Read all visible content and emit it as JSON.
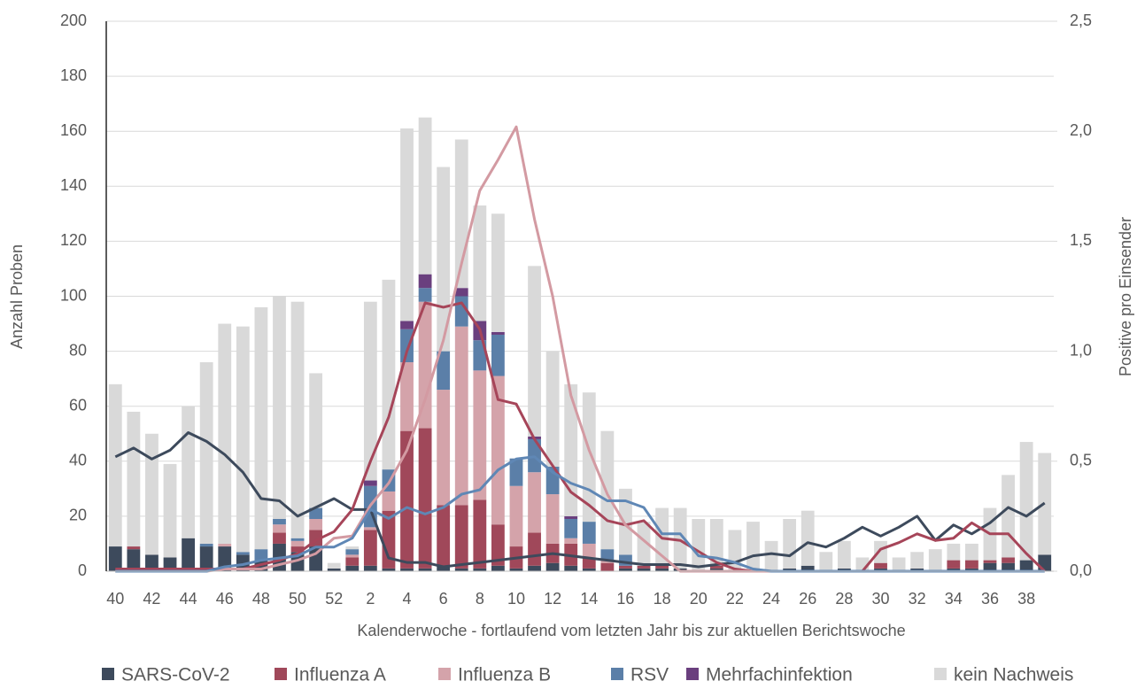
{
  "chart_data": {
    "type": "bar",
    "stacked": true,
    "x_label": "Kalenderwoche - fortlaufend vom letzten Jahr bis zur aktuellen Berichtswoche",
    "y_label": "Anzahl Proben",
    "y2_label": "Positive pro Einsender",
    "categories": [
      "40",
      null,
      "42",
      null,
      "44",
      null,
      "46",
      null,
      "48",
      null,
      "50",
      null,
      "52",
      null,
      "2",
      null,
      "4",
      null,
      "6",
      null,
      "8",
      null,
      "10",
      null,
      "12",
      null,
      "14",
      null,
      "16",
      null,
      "18",
      null,
      "20",
      null,
      "22",
      null,
      "24",
      null,
      "26",
      null,
      "28",
      null,
      "30",
      null,
      "32",
      null,
      "34",
      null,
      "36",
      null,
      "38",
      null
    ],
    "ylim": [
      0,
      200
    ],
    "yticks": [
      0,
      20,
      40,
      60,
      80,
      100,
      120,
      140,
      160,
      180,
      200
    ],
    "y2lim": [
      0,
      2.5
    ],
    "y2ticks": [
      {
        "value": 0,
        "label": "0,0"
      },
      {
        "value": 0.5,
        "label": "0,5"
      },
      {
        "value": 1,
        "label": "1,0"
      },
      {
        "value": 1.5,
        "label": "1,5"
      },
      {
        "value": 2,
        "label": "2,0"
      },
      {
        "value": 2.5,
        "label": "2,5"
      }
    ],
    "grid": true,
    "legend": "bottom",
    "series": [
      {
        "name": "SARS-CoV-2",
        "color": "#3d4a5c",
        "line_color": "#3d4a5c",
        "values": [
          9,
          8,
          6,
          5,
          12,
          9,
          9,
          6,
          4,
          10,
          7,
          9,
          1,
          2,
          2,
          1,
          1,
          1,
          2,
          1,
          1,
          2,
          1,
          2,
          3,
          2,
          1,
          0,
          1,
          1,
          1,
          1,
          0,
          1,
          0,
          0,
          0,
          1,
          2,
          0,
          1,
          0,
          1,
          0,
          1,
          0,
          1,
          1,
          3,
          3,
          4,
          6
        ],
        "rates": [
          0.52,
          0.56,
          0.51,
          0.55,
          0.63,
          0.59,
          0.53,
          0.45,
          0.33,
          0.32,
          0.25,
          0.29,
          0.33,
          0.28,
          0.28,
          0.06,
          0.04,
          0.04,
          0.02,
          0.03,
          0.04,
          0.05,
          0.06,
          0.07,
          0.08,
          0.07,
          0.06,
          0.05,
          0.04,
          0.03,
          0.03,
          0.03,
          0.02,
          0.03,
          0.04,
          0.07,
          0.08,
          0.07,
          0.13,
          0.11,
          0.15,
          0.2,
          0.16,
          0.2,
          0.25,
          0.14,
          0.21,
          0.17,
          0.22,
          0.29,
          0.25,
          0.31
        ]
      },
      {
        "name": "Influenza A",
        "color": "#a0485a",
        "line_color": "#a64559",
        "values": [
          0,
          1,
          0,
          0,
          0,
          0,
          0,
          0,
          0,
          4,
          2,
          6,
          0,
          3,
          13,
          21,
          50,
          51,
          22,
          23,
          25,
          15,
          8,
          12,
          7,
          8,
          4,
          3,
          1,
          1,
          1,
          0,
          0,
          1,
          0,
          0,
          0,
          0,
          0,
          0,
          0,
          0,
          2,
          0,
          0,
          0,
          3,
          3,
          1,
          2,
          0,
          0
        ],
        "rates": [
          0.01,
          0.01,
          0.01,
          0.01,
          0.01,
          0.01,
          0.01,
          0.01,
          0.03,
          0.05,
          0.08,
          0.14,
          0.18,
          0.28,
          0.5,
          0.7,
          1.0,
          1.22,
          1.2,
          1.22,
          1.1,
          0.78,
          0.76,
          0.6,
          0.48,
          0.36,
          0.3,
          0.23,
          0.21,
          0.23,
          0.15,
          0.14,
          0.09,
          0.04,
          0.01,
          0,
          0,
          0,
          0,
          0,
          0,
          0,
          0.1,
          0.13,
          0.17,
          0.14,
          0.15,
          0.22,
          0.17,
          0.17,
          0.08,
          0
        ]
      },
      {
        "name": "Influenza B",
        "color": "#d4a3aa",
        "line_color": "#d39aa2",
        "values": [
          0,
          0,
          0,
          0,
          0,
          0,
          1,
          0,
          0,
          3,
          2,
          4,
          0,
          1,
          1,
          7,
          25,
          46,
          42,
          65,
          47,
          54,
          22,
          22,
          18,
          2,
          5,
          1,
          0,
          0,
          0,
          0,
          0,
          0,
          0,
          0,
          0,
          0,
          0,
          0,
          0,
          0,
          0,
          0,
          0,
          0,
          0,
          0,
          0,
          0,
          0,
          0
        ],
        "rates": [
          0,
          0,
          0,
          0,
          0,
          0,
          0.01,
          0.01,
          0.01,
          0.03,
          0.05,
          0.08,
          0.15,
          0.16,
          0.3,
          0.4,
          0.55,
          0.78,
          1.05,
          1.4,
          1.73,
          1.87,
          2.02,
          1.6,
          1.25,
          0.8,
          0.55,
          0.35,
          0.21,
          0.14,
          0.07,
          0,
          0,
          0,
          0,
          0,
          0,
          0,
          0,
          0,
          0,
          0,
          0,
          0,
          0,
          0,
          0,
          0,
          0,
          0,
          0,
          0
        ]
      },
      {
        "name": "RSV",
        "color": "#5b7fa8",
        "line_color": "#5f87b5",
        "values": [
          0,
          0,
          0,
          0,
          0,
          1,
          0,
          1,
          4,
          2,
          1,
          4,
          0,
          2,
          15,
          8,
          12,
          5,
          14,
          11,
          11,
          15,
          10,
          12,
          10,
          7,
          8,
          4,
          4,
          0,
          0,
          0,
          0,
          0,
          0,
          0,
          0,
          0,
          0,
          0,
          0,
          0,
          0,
          0,
          0,
          0,
          0,
          0,
          0,
          0,
          0,
          0
        ],
        "rates": [
          0,
          0,
          0,
          0,
          0,
          0,
          0.02,
          0.03,
          0.05,
          0.06,
          0.07,
          0.11,
          0.11,
          0.15,
          0.28,
          0.24,
          0.29,
          0.26,
          0.29,
          0.35,
          0.37,
          0.46,
          0.51,
          0.52,
          0.45,
          0.4,
          0.37,
          0.32,
          0.32,
          0.29,
          0.17,
          0.17,
          0.07,
          0.06,
          0.04,
          0.01,
          0,
          0,
          0,
          0,
          0,
          0,
          0,
          0,
          0,
          0,
          0,
          0,
          0,
          0,
          0,
          0
        ]
      },
      {
        "name": "Mehrfachinfektion",
        "color": "#6a3f7e",
        "values": [
          0,
          0,
          0,
          0,
          0,
          0,
          0,
          0,
          0,
          0,
          0,
          0,
          0,
          0,
          2,
          0,
          3,
          5,
          0,
          3,
          7,
          1,
          0,
          1,
          0,
          1,
          0,
          0,
          0,
          0,
          0,
          0,
          0,
          0,
          0,
          0,
          0,
          0,
          0,
          0,
          0,
          0,
          0,
          0,
          0,
          0,
          0,
          0,
          0,
          0,
          0,
          0
        ]
      },
      {
        "name": "kein Nachweis",
        "color": "#d9d9d9",
        "values": [
          59,
          49,
          44,
          34,
          48,
          66,
          80,
          82,
          88,
          81,
          86,
          49,
          2,
          1,
          65,
          69,
          70,
          57,
          67,
          54,
          42,
          43,
          0,
          62,
          42,
          48,
          47,
          43,
          24,
          16,
          21,
          22,
          19,
          17,
          15,
          18,
          11,
          18,
          20,
          7,
          10,
          5,
          8,
          5,
          6,
          8,
          6,
          6,
          19,
          30,
          43,
          37
        ]
      }
    ]
  }
}
